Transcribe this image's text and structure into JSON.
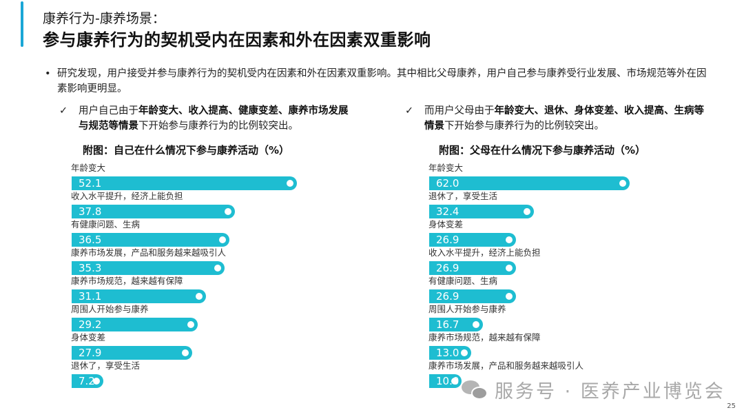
{
  "header": {
    "subtitle": "康养行为-康养场景：",
    "title": "参与康养行为的契机受内在因素和外在因素双重影响",
    "accent_color": "#1aa6d6"
  },
  "summary": {
    "bullet": "•",
    "text": "研究发现，用户接受并参与康养行为的契机受内在因素和外在因素双重影响。其中相比父母康养，用户自己参与康养受行业发展、市场规范等外在因素影响更明显。"
  },
  "points": {
    "left": {
      "check": "✓",
      "prefix": "用户自己由于",
      "bold": "年龄变大、收入提高、健康变差、康养市场发展与规范等情景",
      "suffix": "下开始参与康养行为的比例较突出。"
    },
    "right": {
      "check": "✓",
      "prefix": "而用户父母由于",
      "bold": "年龄变大、退休、身体变差、收入提高、生病等情景",
      "suffix": "下开始参与康养行为的比例较突出。"
    }
  },
  "chart_data": [
    {
      "type": "bar",
      "orientation": "horizontal",
      "title": "附图：自己在什么情况下参与康养活动（%）",
      "xlabel": "",
      "ylabel": "",
      "unit": "%",
      "bar_color": "#1ebdd1",
      "grid": false,
      "categories": [
        "年龄变大",
        "收入水平提升，经济上能负担",
        "有健康问题、生病",
        "康养市场发展，产品和服务越来越吸引人",
        "康养市场规范，越来越有保障",
        "周围人开始参与康养",
        "身体变差",
        "退休了，享受生活"
      ],
      "values": [
        52.1,
        37.8,
        36.5,
        35.3,
        31.1,
        29.2,
        27.9,
        7.2
      ],
      "value_labels": [
        "52.1",
        "37.8",
        "36.5",
        "35.3",
        "31.1",
        "29.2",
        "27.9",
        "7.2"
      ]
    },
    {
      "type": "bar",
      "orientation": "horizontal",
      "title": "附图：父母在什么情况下参与康养活动（%）",
      "xlabel": "",
      "ylabel": "",
      "unit": "%",
      "bar_color": "#1ebdd1",
      "grid": false,
      "categories": [
        "年龄变大",
        "退休了，享受生活",
        "身体变差",
        "收入水平提升，经济上能负担",
        "有健康问题、生病",
        "周围人开始参与康养",
        "康养市场规范，越来越有保障",
        "康养市场发展，产品和服务越来越吸引人"
      ],
      "values": [
        62.0,
        32.4,
        26.9,
        26.9,
        26.9,
        16.7,
        13.0,
        10.0
      ],
      "value_labels": [
        "62.0",
        "32.4",
        "26.9",
        "26.9",
        "26.9",
        "16.7",
        "13.0",
        "10.0"
      ]
    }
  ],
  "watermark": {
    "icon": "wechat-icon",
    "text": "服务号 · 医养产业博览会"
  },
  "footer": {
    "page_number": "25"
  }
}
